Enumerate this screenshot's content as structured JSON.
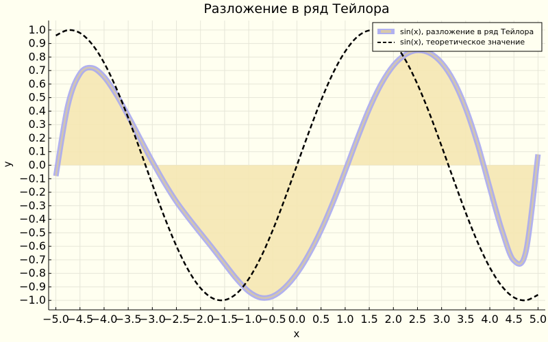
{
  "chart_data": {
    "type": "line",
    "title": "Разложение в ряд Тейлора",
    "xlabel": "x",
    "ylabel": "y",
    "xlim": [
      -5.15,
      5.15
    ],
    "ylim": [
      -1.07,
      1.07
    ],
    "xticks": [
      -5.0,
      -4.5,
      -4.0,
      -3.5,
      -3.0,
      -2.5,
      -2.0,
      -1.5,
      -1.0,
      -0.5,
      0.0,
      0.5,
      1.0,
      1.5,
      2.0,
      2.5,
      3.0,
      3.5,
      4.0,
      4.5,
      5.0
    ],
    "xtick_labels": [
      "−5.0",
      "−4.5",
      "−4.0",
      "−3.5",
      "−3.0",
      "−2.5",
      "−2.0",
      "−1.5",
      "−1.0",
      "−0.5",
      "0.0",
      "0.5",
      "1.0",
      "1.5",
      "2.0",
      "2.5",
      "3.0",
      "3.5",
      "4.0",
      "4.5",
      "5.0"
    ],
    "yticks": [
      1.0,
      0.9,
      0.8,
      0.7,
      0.6,
      0.5,
      0.4,
      0.3,
      0.2,
      0.1,
      0.0,
      -0.1,
      -0.2,
      -0.3,
      -0.4,
      -0.5,
      -0.6,
      -0.7,
      -0.8,
      -0.9,
      -1.0
    ],
    "ytick_labels": [
      "1.0",
      "0.9",
      "0.8",
      "0.7",
      "0.6",
      "0.5",
      "0.4",
      "0.3",
      "0.2",
      "0.1",
      "0.0",
      "−0.1",
      "−0.2",
      "−0.3",
      "−0.4",
      "−0.5",
      "−0.6",
      "−0.7",
      "−0.8",
      "−0.9",
      "−1.0"
    ],
    "grid": true,
    "legend_position": "top-right",
    "series": [
      {
        "name": "sin(x), разложение в ряд Тейлора",
        "style": "solid-thick",
        "color": "#a9a9f0",
        "fill_to_zero": true,
        "fill_color": "#f5e7b3",
        "x": [
          -5.0,
          -4.75,
          -4.5,
          -4.25,
          -4.0,
          -3.75,
          -3.5,
          -3.25,
          -3.0,
          -2.75,
          -2.5,
          -2.25,
          -2.0,
          -1.75,
          -1.5,
          -1.25,
          -1.0,
          -0.75,
          -0.5,
          -0.25,
          0.0,
          0.25,
          0.5,
          0.75,
          1.0,
          1.25,
          1.5,
          1.75,
          2.0,
          2.25,
          2.5,
          2.75,
          3.0,
          3.25,
          3.5,
          3.75,
          4.0,
          4.25,
          4.5,
          4.75,
          5.0
        ],
        "y": [
          -0.08,
          0.444,
          0.677,
          0.72,
          0.653,
          0.524,
          0.365,
          0.195,
          0.028,
          -0.129,
          -0.27,
          -0.39,
          -0.503,
          -0.614,
          -0.729,
          -0.842,
          -0.934,
          -0.98,
          -0.969,
          -0.905,
          -0.8,
          -0.657,
          -0.481,
          -0.274,
          -0.043,
          0.195,
          0.418,
          0.602,
          0.737,
          0.818,
          0.849,
          0.83,
          0.757,
          0.623,
          0.421,
          0.153,
          -0.168,
          -0.48,
          -0.706,
          -0.637,
          0.08
        ]
      },
      {
        "name": "sin(x), теоретическое значение",
        "style": "dashed",
        "color": "#000000",
        "x": [
          -5.0,
          -4.75,
          -4.5,
          -4.25,
          -4.0,
          -3.75,
          -3.5,
          -3.25,
          -3.0,
          -2.75,
          -2.5,
          -2.25,
          -2.0,
          -1.75,
          -1.5,
          -1.25,
          -1.0,
          -0.75,
          -0.5,
          -0.25,
          0.0,
          0.25,
          0.5,
          0.75,
          1.0,
          1.25,
          1.5,
          1.75,
          2.0,
          2.25,
          2.5,
          2.75,
          3.0,
          3.25,
          3.5,
          3.75,
          4.0,
          4.25,
          4.5,
          4.75,
          5.0
        ],
        "y": [
          0.959,
          0.999,
          0.978,
          0.895,
          0.757,
          0.572,
          0.351,
          0.108,
          -0.141,
          -0.382,
          -0.598,
          -0.778,
          -0.909,
          -0.984,
          -0.997,
          -0.949,
          -0.841,
          -0.682,
          -0.479,
          -0.247,
          0.0,
          0.247,
          0.479,
          0.682,
          0.841,
          0.949,
          0.997,
          0.984,
          0.909,
          0.778,
          0.598,
          0.382,
          0.141,
          -0.108,
          -0.351,
          -0.572,
          -0.757,
          -0.895,
          -0.978,
          -0.999,
          -0.959
        ]
      }
    ]
  }
}
